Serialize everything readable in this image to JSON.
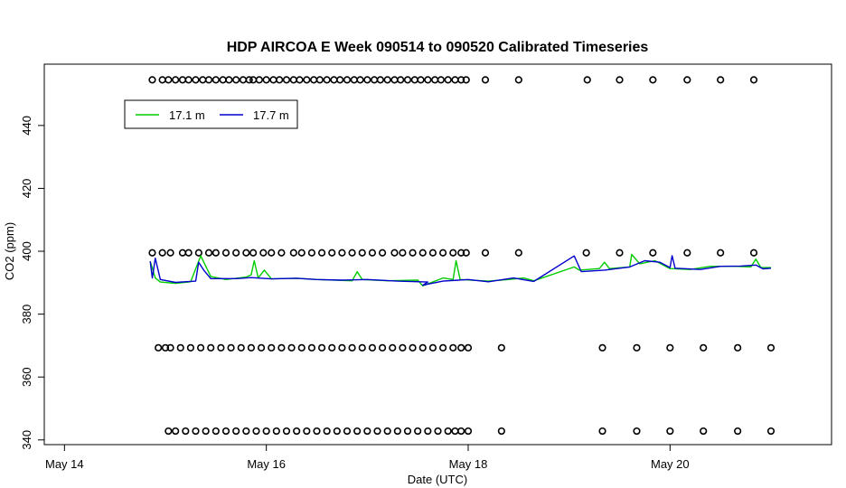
{
  "chart_data": {
    "type": "line",
    "title": "HDP AIRCOA E  Week 090514 to 090520  Calibrated Timeseries",
    "xlabel": "Date (UTC)",
    "ylabel": "CO2 (ppm)",
    "xlim": [
      13.8,
      21.6
    ],
    "ylim": [
      338.5,
      459.5
    ],
    "x_ticks": [
      {
        "x": 14,
        "label": "May 14"
      },
      {
        "x": 16,
        "label": "May 16"
      },
      {
        "x": 18,
        "label": "May 18"
      },
      {
        "x": 20,
        "label": "May 20"
      }
    ],
    "y_ticks": [
      340,
      360,
      380,
      400,
      420,
      440
    ],
    "grid": false,
    "legend_position": "top-left",
    "series": [
      {
        "name": "17.1 m",
        "color": "#00cc00",
        "points": [
          [
            14.85,
            396.8
          ],
          [
            14.9,
            391.5
          ],
          [
            14.95,
            390.2
          ],
          [
            15.1,
            389.8
          ],
          [
            15.25,
            390.3
          ],
          [
            15.35,
            398.5
          ],
          [
            15.45,
            392.0
          ],
          [
            15.6,
            391.0
          ],
          [
            15.8,
            391.8
          ],
          [
            15.85,
            392.5
          ],
          [
            15.88,
            397.0
          ],
          [
            15.92,
            391.5
          ],
          [
            15.98,
            394.0
          ],
          [
            16.05,
            391.2
          ],
          [
            16.3,
            391.4
          ],
          [
            16.5,
            391.0
          ],
          [
            16.85,
            390.6
          ],
          [
            16.9,
            393.5
          ],
          [
            16.95,
            391.0
          ],
          [
            17.2,
            390.6
          ],
          [
            17.5,
            390.8
          ],
          [
            17.55,
            389.0
          ],
          [
            17.75,
            391.5
          ],
          [
            17.85,
            391.0
          ],
          [
            17.88,
            397.0
          ],
          [
            17.92,
            391.0
          ],
          [
            18.2,
            390.5
          ],
          [
            18.4,
            391.0
          ],
          [
            18.55,
            391.5
          ],
          [
            18.65,
            390.6
          ],
          [
            19.05,
            395.0
          ],
          [
            19.1,
            394.0
          ],
          [
            19.3,
            394.5
          ],
          [
            19.35,
            396.5
          ],
          [
            19.4,
            394.5
          ],
          [
            19.6,
            395.0
          ],
          [
            19.62,
            399.0
          ],
          [
            19.7,
            396.0
          ],
          [
            19.85,
            397.0
          ],
          [
            20.0,
            394.5
          ],
          [
            20.2,
            394.2
          ],
          [
            20.4,
            395.2
          ],
          [
            20.65,
            395.2
          ],
          [
            20.8,
            395.0
          ],
          [
            20.85,
            397.5
          ],
          [
            20.9,
            394.8
          ],
          [
            21.0,
            394.8
          ]
        ]
      },
      {
        "name": "17.7 m",
        "color": "#0000cc",
        "points": [
          [
            14.85,
            396.8
          ],
          [
            14.87,
            391.5
          ],
          [
            14.9,
            397.8
          ],
          [
            14.95,
            391.0
          ],
          [
            15.1,
            390.1
          ],
          [
            15.3,
            390.5
          ],
          [
            15.33,
            396.5
          ],
          [
            15.38,
            394.0
          ],
          [
            15.45,
            391.3
          ],
          [
            15.7,
            391.3
          ],
          [
            15.85,
            391.6
          ],
          [
            16.05,
            391.2
          ],
          [
            16.3,
            391.4
          ],
          [
            16.5,
            391.0
          ],
          [
            16.75,
            390.8
          ],
          [
            17.0,
            391.0
          ],
          [
            17.3,
            390.5
          ],
          [
            17.6,
            390.2
          ],
          [
            17.55,
            389.2
          ],
          [
            17.75,
            390.5
          ],
          [
            18.0,
            391.0
          ],
          [
            18.2,
            390.3
          ],
          [
            18.45,
            391.5
          ],
          [
            18.65,
            390.4
          ],
          [
            19.05,
            398.5
          ],
          [
            19.12,
            393.5
          ],
          [
            19.35,
            394.0
          ],
          [
            19.6,
            395.0
          ],
          [
            19.75,
            397.0
          ],
          [
            19.9,
            396.5
          ],
          [
            20.0,
            394.8
          ],
          [
            20.02,
            398.6
          ],
          [
            20.05,
            394.6
          ],
          [
            20.3,
            394.2
          ],
          [
            20.5,
            395.2
          ],
          [
            20.7,
            395.3
          ],
          [
            20.85,
            395.6
          ],
          [
            20.92,
            394.4
          ],
          [
            21.0,
            394.6
          ]
        ]
      }
    ],
    "calibration_points": [
      {
        "x": [
          14.87,
          14.97,
          15.03,
          15.1,
          15.17,
          15.23,
          15.3,
          15.37,
          15.43,
          15.5,
          15.57,
          15.63,
          15.7,
          15.77,
          15.83,
          15.87,
          15.93,
          16.0,
          16.07,
          16.13,
          16.2,
          16.27,
          16.33,
          16.4,
          16.47,
          16.53,
          16.6,
          16.67,
          16.73,
          16.8,
          16.87,
          16.93,
          17.0,
          17.07,
          17.13,
          17.2,
          17.27,
          17.33,
          17.4,
          17.47,
          17.53,
          17.6,
          17.67,
          17.73,
          17.8,
          17.87,
          17.93,
          17.98,
          18.17,
          18.5,
          19.18,
          19.5,
          19.83,
          20.17,
          20.5,
          20.83
        ],
        "y": 454.5
      },
      {
        "x": [
          14.87,
          14.97,
          15.05,
          15.17,
          15.23,
          15.33,
          15.43,
          15.5,
          15.6,
          15.7,
          15.8,
          15.87,
          15.97,
          16.05,
          16.15,
          16.27,
          16.35,
          16.45,
          16.55,
          16.65,
          16.75,
          16.85,
          16.95,
          17.05,
          17.15,
          17.27,
          17.35,
          17.45,
          17.55,
          17.65,
          17.75,
          17.85,
          17.93,
          17.98,
          18.17,
          18.5,
          19.17,
          19.5,
          19.83,
          20.17,
          20.5,
          20.83
        ],
        "y": 399.5
      },
      {
        "x": [
          14.93,
          15.0,
          15.05,
          15.15,
          15.25,
          15.35,
          15.45,
          15.55,
          15.65,
          15.75,
          15.85,
          15.95,
          16.05,
          16.15,
          16.25,
          16.35,
          16.45,
          16.55,
          16.65,
          16.75,
          16.85,
          16.95,
          17.05,
          17.15,
          17.25,
          17.35,
          17.45,
          17.55,
          17.65,
          17.75,
          17.85,
          17.93,
          18.0,
          18.33,
          19.33,
          19.67,
          20.0,
          20.33,
          20.67,
          21.0
        ],
        "y": 369.3
      },
      {
        "x": [
          15.03,
          15.1,
          15.2,
          15.3,
          15.4,
          15.5,
          15.6,
          15.7,
          15.8,
          15.9,
          16.0,
          16.1,
          16.2,
          16.3,
          16.4,
          16.5,
          16.6,
          16.7,
          16.8,
          16.9,
          17.0,
          17.1,
          17.2,
          17.3,
          17.4,
          17.5,
          17.6,
          17.7,
          17.8,
          17.87,
          17.93,
          18.0,
          18.33,
          19.33,
          19.67,
          20.0,
          20.33,
          20.67,
          21.0
        ],
        "y": 342.8
      }
    ]
  }
}
